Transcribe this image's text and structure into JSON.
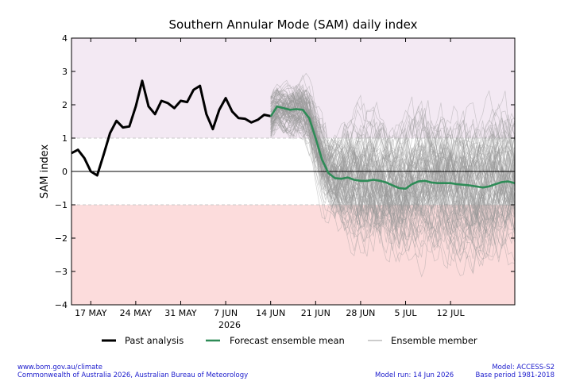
{
  "chart_data": {
    "type": "line",
    "title": "Southern Annular Mode (SAM) daily index",
    "ylabel": "SAM index",
    "xlabel": "",
    "ylim": [
      -4,
      4
    ],
    "yticks": [
      -4,
      -3,
      -2,
      -1,
      0,
      1,
      2,
      3,
      4
    ],
    "ytick_labels": [
      "−4",
      "−3",
      "−2",
      "−1",
      "0",
      "1",
      "2",
      "3",
      "4"
    ],
    "xlim": [
      "2026-05-14",
      "2026-07-22"
    ],
    "xticks": [
      {
        "date": "2026-05-17",
        "label": "17 MAY"
      },
      {
        "date": "2026-05-24",
        "label": "24 MAY"
      },
      {
        "date": "2026-05-31",
        "label": "31 MAY"
      },
      {
        "date": "2026-06-07",
        "label": "7 JUN"
      },
      {
        "date": "2026-06-14",
        "label": "14 JUN"
      },
      {
        "date": "2026-06-21",
        "label": "21 JUN"
      },
      {
        "date": "2026-06-28",
        "label": "28 JUN"
      },
      {
        "date": "2026-07-05",
        "label": "5 JUL"
      },
      {
        "date": "2026-07-12",
        "label": "12 JUL"
      }
    ],
    "year_label": "2026",
    "grid": false,
    "legend_position": "bottom",
    "bands": {
      "positive_threshold": 1,
      "negative_threshold": -1
    },
    "colors": {
      "positive_band": "#f3e9f3",
      "negative_band": "#fcdcdc",
      "past": "#000000",
      "mean": "#2e8b57",
      "member": "#999999"
    },
    "series": [
      {
        "name": "Past analysis",
        "x": [
          "2026-05-14",
          "2026-05-15",
          "2026-05-16",
          "2026-05-17",
          "2026-05-18",
          "2026-05-19",
          "2026-05-20",
          "2026-05-21",
          "2026-05-22",
          "2026-05-23",
          "2026-05-24",
          "2026-05-25",
          "2026-05-26",
          "2026-05-27",
          "2026-05-28",
          "2026-05-29",
          "2026-05-30",
          "2026-05-31",
          "2026-06-01",
          "2026-06-02",
          "2026-06-03",
          "2026-06-04",
          "2026-06-05",
          "2026-06-06",
          "2026-06-07",
          "2026-06-08",
          "2026-06-09",
          "2026-06-10",
          "2026-06-11",
          "2026-06-12",
          "2026-06-13",
          "2026-06-14"
        ],
        "values": [
          0.55,
          0.65,
          0.4,
          0.0,
          -0.12,
          0.5,
          1.15,
          1.52,
          1.32,
          1.35,
          1.95,
          2.72,
          1.95,
          1.72,
          2.12,
          2.05,
          1.9,
          2.12,
          2.08,
          2.45,
          2.57,
          1.72,
          1.27,
          1.85,
          2.2,
          1.8,
          1.6,
          1.58,
          1.47,
          1.55,
          1.7,
          1.66
        ]
      },
      {
        "name": "Forecast ensemble mean",
        "x": [
          "2026-06-14",
          "2026-06-15",
          "2026-06-16",
          "2026-06-17",
          "2026-06-18",
          "2026-06-19",
          "2026-06-20",
          "2026-06-21",
          "2026-06-22",
          "2026-06-23",
          "2026-06-24",
          "2026-06-25",
          "2026-06-26",
          "2026-06-27",
          "2026-06-28",
          "2026-06-29",
          "2026-06-30",
          "2026-07-01",
          "2026-07-02",
          "2026-07-03",
          "2026-07-04",
          "2026-07-05",
          "2026-07-06",
          "2026-07-07",
          "2026-07-08",
          "2026-07-09",
          "2026-07-10",
          "2026-07-11",
          "2026-07-12",
          "2026-07-13",
          "2026-07-14",
          "2026-07-15",
          "2026-07-16",
          "2026-07-17",
          "2026-07-18",
          "2026-07-19",
          "2026-07-20",
          "2026-07-21",
          "2026-07-22"
        ],
        "values": [
          1.65,
          1.95,
          1.9,
          1.85,
          1.87,
          1.85,
          1.6,
          1.0,
          0.35,
          -0.05,
          -0.2,
          -0.22,
          -0.18,
          -0.25,
          -0.28,
          -0.28,
          -0.25,
          -0.28,
          -0.33,
          -0.42,
          -0.5,
          -0.52,
          -0.38,
          -0.3,
          -0.28,
          -0.33,
          -0.35,
          -0.35,
          -0.35,
          -0.38,
          -0.4,
          -0.42,
          -0.45,
          -0.48,
          -0.45,
          -0.38,
          -0.32,
          -0.3,
          -0.35
        ]
      },
      {
        "name": "Ensemble member",
        "count": 99,
        "start": "2026-06-14"
      }
    ]
  },
  "footer": {
    "url": "www.bom.gov.au/climate",
    "copyright": "Commonwealth of Australia 2026, Australian Bureau of Meteorology",
    "model_run": "Model run: 14 Jun 2026",
    "model": "Model: ACCESS-S2",
    "base_period": "Base period 1981-2018"
  }
}
